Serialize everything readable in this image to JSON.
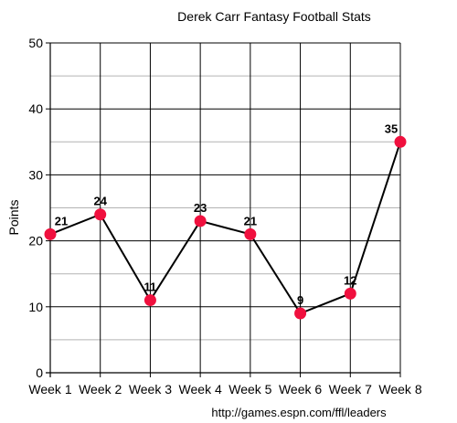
{
  "chart_data": {
    "type": "line",
    "title": "Derek Carr Fantasy Football Stats",
    "xlabel": "",
    "ylabel": "Points",
    "categories": [
      "Week 1",
      "Week 2",
      "Week 3",
      "Week 4",
      "Week 5",
      "Week 6",
      "Week 7",
      "Week 8"
    ],
    "series": [
      {
        "values": [
          21,
          24,
          11,
          23,
          21,
          9,
          12,
          35
        ]
      }
    ],
    "ylim": [
      0,
      50
    ],
    "yticks": [
      0,
      10,
      20,
      30,
      40,
      50
    ],
    "minor_step": 5,
    "grid": true,
    "source": "http://games.espn.com/ffl/leaders",
    "colors": {
      "line": "#000000",
      "marker": "#f0103e",
      "grid_major": "#000000",
      "grid_minor": "#b3b3b3"
    }
  }
}
